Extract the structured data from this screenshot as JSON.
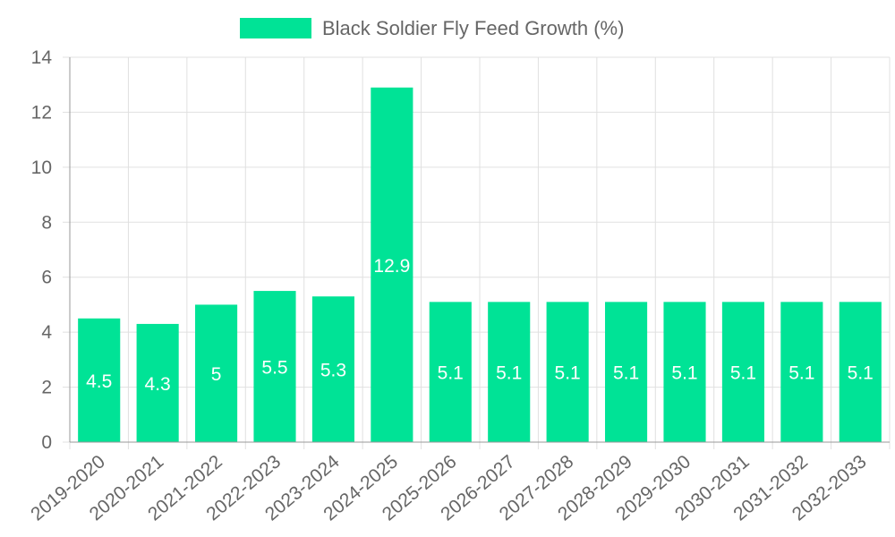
{
  "chart_data": {
    "type": "bar",
    "title": "",
    "xlabel": "",
    "ylabel": "",
    "categories": [
      "2019-2020",
      "2020-2021",
      "2021-2022",
      "2022-2023",
      "2023-2024",
      "2024-2025",
      "2025-2026",
      "2026-2027",
      "2027-2028",
      "2028-2029",
      "2029-2030",
      "2030-2031",
      "2031-2032",
      "2032-2033"
    ],
    "series": [
      {
        "name": "Black Soldier Fly Feed Growth (%)",
        "values": [
          4.5,
          4.3,
          5,
          5.5,
          5.3,
          12.9,
          5.1,
          5.1,
          5.1,
          5.1,
          5.1,
          5.1,
          5.1,
          5.1
        ],
        "color": "#00e396"
      }
    ],
    "ylim": [
      0,
      14
    ],
    "yticks": [
      0,
      2,
      4,
      6,
      8,
      10,
      12,
      14
    ],
    "grid": true,
    "legend_position": "top-center",
    "data_labels": true
  },
  "colors": {
    "grid": "#e0e0e0",
    "axis": "#999999",
    "text": "#666666",
    "label": "#ffffff"
  }
}
